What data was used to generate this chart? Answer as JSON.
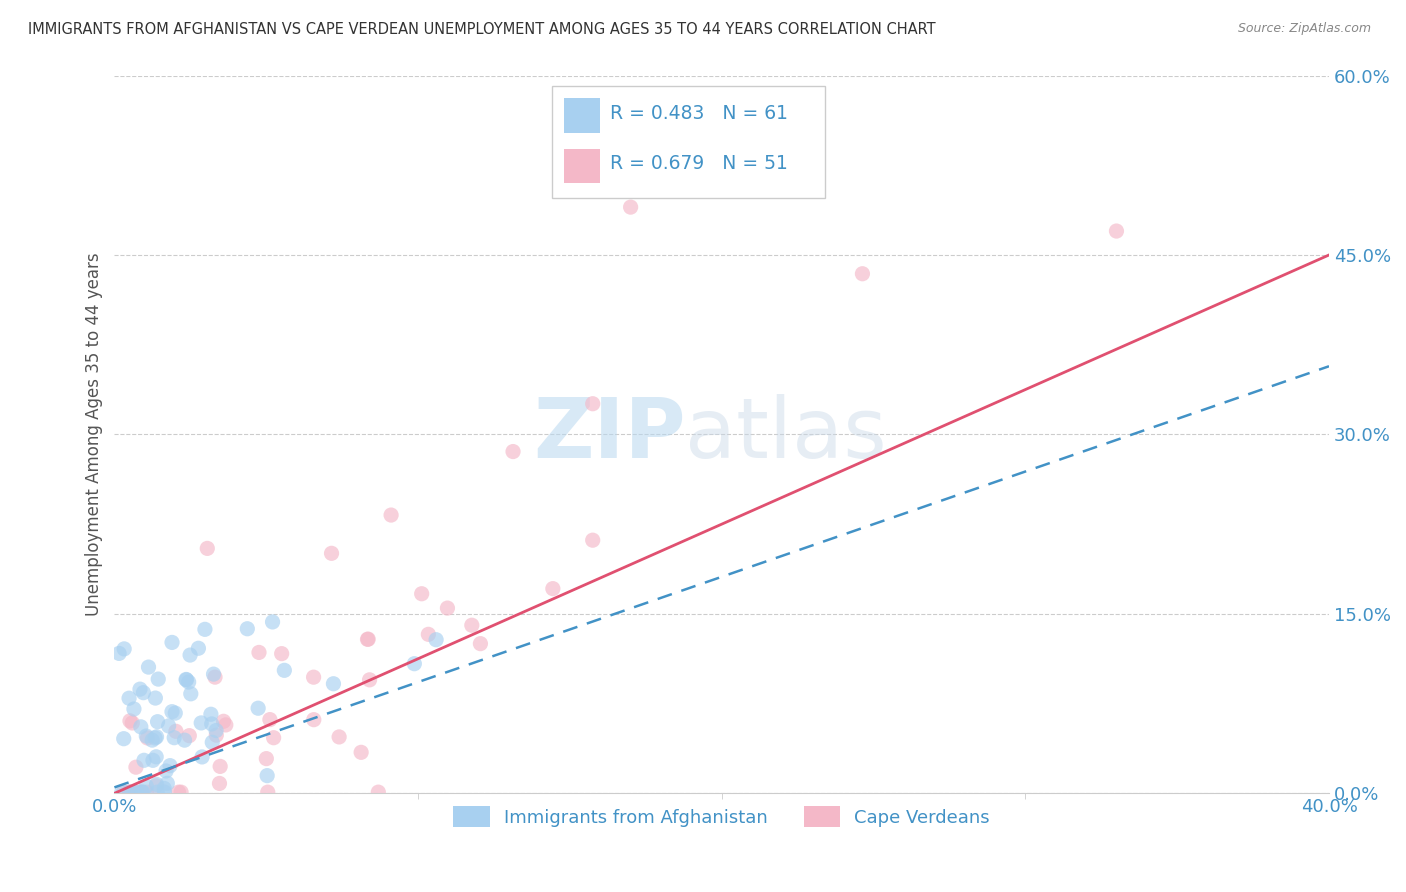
{
  "title": "IMMIGRANTS FROM AFGHANISTAN VS CAPE VERDEAN UNEMPLOYMENT AMONG AGES 35 TO 44 YEARS CORRELATION CHART",
  "source": "Source: ZipAtlas.com",
  "ylabel": "Unemployment Among Ages 35 to 44 years",
  "watermark_part1": "ZIP",
  "watermark_part2": "atlas",
  "legend_labels": [
    "Immigrants from Afghanistan",
    "Cape Verdeans"
  ],
  "legend_R1": "R = 0.483",
  "legend_N1": "N = 61",
  "legend_R2": "R = 0.679",
  "legend_N2": "N = 51",
  "afghanistan_color": "#a8d0f0",
  "cape_verdean_color": "#f4b8c8",
  "afghanistan_line_color": "#4292c6",
  "cape_verdean_line_color": "#e05070",
  "xlim": [
    0.0,
    0.4
  ],
  "ylim": [
    0.0,
    0.6
  ],
  "yticks": [
    0.0,
    0.15,
    0.3,
    0.45,
    0.6
  ],
  "background_color": "#ffffff",
  "grid_color": "#cccccc",
  "title_color": "#333333",
  "ylabel_color": "#555555",
  "tick_label_color": "#4292c6",
  "line_afg_slope": 0.88,
  "line_afg_intercept": 0.005,
  "line_cv_slope": 1.125,
  "line_cv_intercept": 0.0
}
